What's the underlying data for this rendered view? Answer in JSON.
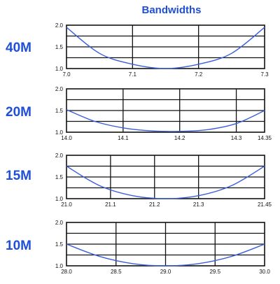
{
  "title": "Bandwidths",
  "colors": {
    "title": "#1f4fd6",
    "curve": "#3a5fd8",
    "grid": "#111111"
  },
  "chart_data": [
    {
      "type": "line",
      "band": "40M",
      "x_ticks": [
        "7.0",
        "7.1",
        "7.2",
        "7.3"
      ],
      "xlim": [
        7.0,
        7.3
      ],
      "y_ticks": [
        "2.0",
        "1.5",
        "1.0"
      ],
      "ylim": [
        1.0,
        2.0
      ],
      "x": [
        7.0,
        7.05,
        7.1,
        7.15,
        7.2,
        7.25,
        7.3
      ],
      "y": [
        1.95,
        1.35,
        1.1,
        1.0,
        1.1,
        1.35,
        1.95
      ]
    },
    {
      "type": "line",
      "band": "20M",
      "x_ticks": [
        "14.0",
        "14.1",
        "14.2",
        "14.3",
        "14.35"
      ],
      "xlim": [
        14.0,
        14.35
      ],
      "y_ticks": [
        "2.0",
        "1.5",
        "1.0"
      ],
      "ylim": [
        1.0,
        2.0
      ],
      "x": [
        14.0,
        14.05,
        14.1,
        14.15,
        14.2,
        14.25,
        14.3,
        14.35
      ],
      "y": [
        1.52,
        1.25,
        1.1,
        1.03,
        1.02,
        1.06,
        1.2,
        1.5
      ]
    },
    {
      "type": "line",
      "band": "15M",
      "x_ticks": [
        "21.0",
        "21.1",
        "21.2",
        "21.3",
        "21.45"
      ],
      "xlim": [
        21.0,
        21.45
      ],
      "y_ticks": [
        "2.0",
        "1.5",
        "1.0"
      ],
      "ylim": [
        1.0,
        2.0
      ],
      "x": [
        21.0,
        21.075,
        21.15,
        21.225,
        21.3,
        21.375,
        21.45
      ],
      "y": [
        1.75,
        1.3,
        1.07,
        1.0,
        1.07,
        1.3,
        1.75
      ]
    },
    {
      "type": "line",
      "band": "10M",
      "x_ticks": [
        "28.0",
        "28.5",
        "29.0",
        "29.5",
        "30.0"
      ],
      "xlim": [
        28.0,
        30.0
      ],
      "y_ticks": [
        "2.0",
        "1.5",
        "1.0"
      ],
      "ylim": [
        1.0,
        2.0
      ],
      "x": [
        28.0,
        28.33,
        28.67,
        29.0,
        29.33,
        29.67,
        30.0
      ],
      "y": [
        1.5,
        1.22,
        1.05,
        1.0,
        1.05,
        1.22,
        1.5
      ]
    }
  ]
}
